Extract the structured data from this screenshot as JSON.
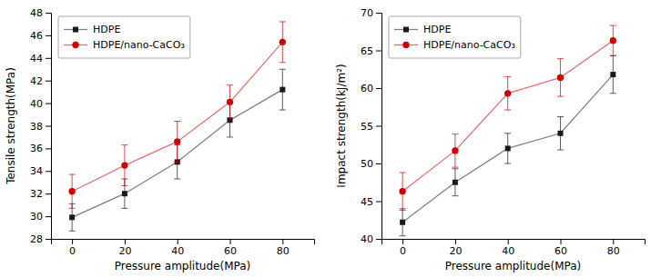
{
  "chart_data": [
    {
      "type": "line",
      "xlabel": "Pressure amplitude(MPa)",
      "ylabel": "Tensile strength(MPa)",
      "x": [
        0,
        20,
        40,
        60,
        80
      ],
      "xlim": [
        -8,
        92
      ],
      "xticks": [
        0,
        20,
        40,
        60,
        80
      ],
      "ylim": [
        28,
        48
      ],
      "yticks": [
        28,
        30,
        32,
        34,
        36,
        38,
        40,
        42,
        44,
        46,
        48
      ],
      "legend": "upper-left",
      "series": [
        {
          "name": "HDPE",
          "color": "#1a1a1a",
          "marker": "square",
          "values": [
            29.9,
            32.0,
            34.8,
            38.5,
            41.2
          ],
          "errors": [
            1.2,
            1.3,
            1.5,
            1.5,
            1.8
          ]
        },
        {
          "name": "HDPE/nano-CaCO₃",
          "color": "#cc0000",
          "marker": "circle",
          "values": [
            32.2,
            34.5,
            36.6,
            40.1,
            45.4
          ],
          "errors": [
            1.5,
            1.8,
            1.8,
            1.5,
            1.8
          ]
        }
      ]
    },
    {
      "type": "line",
      "xlabel": "Pressure amplitude(MPa)",
      "ylabel": "Impact strength(kJ/m²)",
      "x": [
        0,
        20,
        40,
        60,
        80
      ],
      "xlim": [
        -8,
        92
      ],
      "xticks": [
        0,
        20,
        40,
        60,
        80
      ],
      "ylim": [
        40,
        70
      ],
      "yticks": [
        40,
        45,
        50,
        55,
        60,
        65,
        70
      ],
      "legend": "upper-left",
      "series": [
        {
          "name": "HDPE",
          "color": "#1a1a1a",
          "marker": "square",
          "values": [
            42.2,
            47.5,
            52.0,
            54.0,
            61.8
          ],
          "errors": [
            1.8,
            1.8,
            2.0,
            2.2,
            2.5
          ]
        },
        {
          "name": "HDPE/nano-CaCO₃",
          "color": "#cc0000",
          "marker": "circle",
          "values": [
            46.3,
            51.7,
            59.3,
            61.4,
            66.3
          ],
          "errors": [
            2.5,
            2.2,
            2.2,
            2.5,
            2.0
          ]
        }
      ]
    }
  ]
}
